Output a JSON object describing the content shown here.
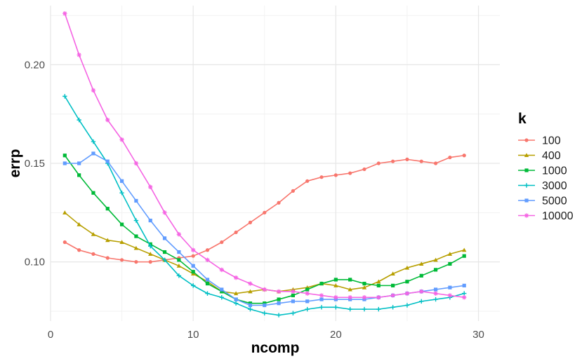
{
  "chart_data": {
    "type": "line",
    "xlabel": "ncomp",
    "ylabel": "errp",
    "xlim": [
      0,
      31.5
    ],
    "ylim": [
      0.07,
      0.23
    ],
    "xticks": [
      0,
      10,
      20,
      30
    ],
    "xtick_labels": [
      "0",
      "10",
      "20",
      "30"
    ],
    "yticks": [
      0.1,
      0.15,
      0.2
    ],
    "ytick_labels": [
      "0.10",
      "0.15",
      "0.20"
    ],
    "grid": true,
    "legend_title": "k",
    "legend_position": "right",
    "x": [
      1,
      2,
      3,
      4,
      5,
      6,
      7,
      8,
      9,
      10,
      11,
      12,
      13,
      14,
      15,
      16,
      17,
      18,
      19,
      20,
      21,
      22,
      23,
      24,
      25,
      26,
      27,
      28,
      29
    ],
    "series": [
      {
        "name": "100",
        "color": "#F8766D",
        "values": [
          0.11,
          0.106,
          0.104,
          0.102,
          0.101,
          0.1,
          0.1,
          0.101,
          0.102,
          0.103,
          0.106,
          0.11,
          0.115,
          0.12,
          0.125,
          0.13,
          0.136,
          0.141,
          0.143,
          0.144,
          0.145,
          0.147,
          0.15,
          0.151,
          0.152,
          0.151,
          0.15,
          0.153,
          0.154
        ]
      },
      {
        "name": "400",
        "color": "#B79F00",
        "values": [
          0.125,
          0.119,
          0.114,
          0.111,
          0.11,
          0.107,
          0.104,
          0.101,
          0.098,
          0.094,
          0.09,
          0.085,
          0.084,
          0.085,
          0.086,
          0.085,
          0.086,
          0.087,
          0.089,
          0.088,
          0.086,
          0.087,
          0.09,
          0.094,
          0.097,
          0.099,
          0.101,
          0.104,
          0.106
        ]
      },
      {
        "name": "1000",
        "color": "#00BA38",
        "values": [
          0.154,
          0.144,
          0.135,
          0.127,
          0.119,
          0.113,
          0.109,
          0.105,
          0.101,
          0.095,
          0.089,
          0.085,
          0.081,
          0.079,
          0.079,
          0.081,
          0.083,
          0.086,
          0.089,
          0.091,
          0.091,
          0.089,
          0.088,
          0.088,
          0.09,
          0.093,
          0.096,
          0.099,
          0.103
        ]
      },
      {
        "name": "3000",
        "color": "#00BFC4",
        "values": [
          0.184,
          0.172,
          0.161,
          0.15,
          0.135,
          0.121,
          0.108,
          0.101,
          0.093,
          0.088,
          0.084,
          0.082,
          0.079,
          0.076,
          0.074,
          0.073,
          0.074,
          0.076,
          0.077,
          0.077,
          0.076,
          0.076,
          0.076,
          0.077,
          0.078,
          0.08,
          0.081,
          0.082,
          0.084
        ]
      },
      {
        "name": "5000",
        "color": "#619CFF",
        "values": [
          0.15,
          0.15,
          0.155,
          0.151,
          0.141,
          0.131,
          0.121,
          0.112,
          0.105,
          0.098,
          0.091,
          0.086,
          0.081,
          0.078,
          0.078,
          0.079,
          0.08,
          0.08,
          0.081,
          0.081,
          0.081,
          0.081,
          0.082,
          0.083,
          0.084,
          0.085,
          0.086,
          0.087,
          0.088
        ]
      },
      {
        "name": "10000",
        "color": "#F564E3",
        "values": [
          0.226,
          0.205,
          0.187,
          0.172,
          0.162,
          0.15,
          0.138,
          0.125,
          0.114,
          0.106,
          0.101,
          0.096,
          0.092,
          0.089,
          0.086,
          0.085,
          0.085,
          0.084,
          0.083,
          0.082,
          0.082,
          0.082,
          0.082,
          0.083,
          0.084,
          0.085,
          0.084,
          0.083,
          0.082
        ]
      }
    ]
  }
}
